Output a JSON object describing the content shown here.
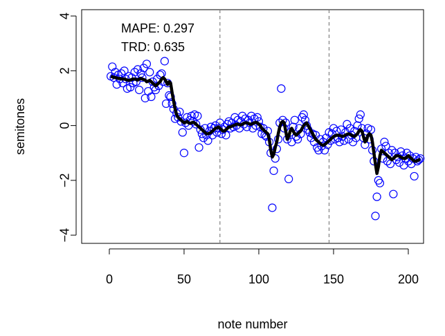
{
  "chart_data": {
    "type": "scatter",
    "xlabel": "note number",
    "ylabel": "semitones",
    "annotations": [
      "MAPE: 0.297",
      "TRD: 0.635"
    ],
    "xlim": [
      -18.5,
      210.2
    ],
    "ylim": [
      -4.3,
      4.23
    ],
    "xticks": [
      0,
      50,
      100,
      150,
      200
    ],
    "yticks": [
      {
        "value": -4,
        "label": "−4"
      },
      {
        "value": -2,
        "label": "−2"
      },
      0,
      2,
      4
    ],
    "vlines": [
      74,
      147
    ],
    "vline_color": "#808080",
    "x": [
      1,
      2,
      3,
      4,
      5,
      6,
      7,
      8,
      9,
      10,
      11,
      12,
      13,
      14,
      15,
      16,
      17,
      18,
      19,
      20,
      21,
      22,
      23,
      24,
      25,
      26,
      27,
      28,
      29,
      30,
      31,
      32,
      33,
      34,
      35,
      36,
      37,
      38,
      39,
      40,
      41,
      42,
      43,
      44,
      45,
      46,
      47,
      48,
      49,
      50,
      51,
      52,
      53,
      54,
      55,
      56,
      57,
      58,
      59,
      60,
      61,
      62,
      63,
      64,
      65,
      66,
      67,
      68,
      69,
      70,
      71,
      72,
      73,
      74,
      75,
      76,
      77,
      78,
      79,
      80,
      81,
      82,
      83,
      84,
      85,
      86,
      87,
      88,
      89,
      90,
      91,
      92,
      93,
      94,
      95,
      96,
      97,
      98,
      99,
      100,
      101,
      102,
      103,
      104,
      105,
      106,
      107,
      108,
      109,
      110,
      111,
      112,
      113,
      114,
      115,
      116,
      117,
      118,
      119,
      120,
      121,
      122,
      123,
      124,
      125,
      126,
      127,
      128,
      129,
      130,
      131,
      132,
      133,
      134,
      135,
      136,
      137,
      138,
      139,
      140,
      141,
      142,
      143,
      144,
      145,
      146,
      147,
      148,
      149,
      150,
      151,
      152,
      153,
      154,
      155,
      156,
      157,
      158,
      159,
      160,
      161,
      162,
      163,
      164,
      165,
      166,
      167,
      168,
      169,
      170,
      171,
      172,
      173,
      174,
      175,
      176,
      177,
      178,
      179,
      180,
      181,
      182,
      183,
      184,
      185,
      186,
      187,
      188,
      189,
      190,
      191,
      192,
      193,
      194,
      195,
      196,
      197,
      198,
      199,
      200,
      201,
      202,
      203,
      204,
      205,
      206,
      207,
      208
    ],
    "points": {
      "color": "#0000ff",
      "values": [
        1.8,
        2.15,
        1.75,
        1.95,
        1.5,
        1.85,
        1.7,
        1.9,
        1.55,
        2.0,
        1.7,
        1.35,
        1.8,
        1.4,
        1.75,
        1.55,
        1.95,
        1.6,
        2.05,
        1.3,
        1.9,
        1.75,
        2.1,
        1.0,
        2.25,
        1.25,
        1.95,
        1.05,
        1.6,
        1.4,
        1.3,
        1.7,
        1.45,
        1.85,
        1.9,
        1.6,
        2.35,
        0.8,
        1.55,
        1.1,
        1.05,
        0.8,
        0.6,
        0.25,
        0.45,
        0.3,
        0.5,
        0.15,
        -0.25,
        -1.0,
        0.1,
        0.3,
        0.0,
        0.2,
        0.35,
        0.15,
        0.4,
        0.05,
        0.35,
        -0.8,
        -0.15,
        -0.3,
        -0.45,
        -0.1,
        -0.35,
        -0.55,
        -0.2,
        -0.05,
        -0.35,
        -0.1,
        0.0,
        -0.25,
        -0.1,
        0.1,
        -0.3,
        -0.15,
        -0.05,
        -0.35,
        0.05,
        0.15,
        -0.1,
        0.1,
        -0.05,
        0.3,
        0.0,
        0.2,
        -0.1,
        0.15,
        0.35,
        0.05,
        0.25,
        -0.05,
        0.2,
        0.1,
        0.35,
        -0.1,
        0.25,
        0.0,
        0.3,
        0.15,
        -0.05,
        -0.3,
        -0.1,
        -0.35,
        -0.4,
        -0.2,
        -0.6,
        -1.0,
        -3.0,
        -1.65,
        -1.2,
        -0.85,
        -0.5,
        0.1,
        1.35,
        0.2,
        -0.1,
        0.1,
        -0.5,
        -1.95,
        -0.25,
        -0.6,
        -0.05,
        0.2,
        -0.4,
        -0.5,
        -0.1,
        -0.3,
        0.3,
        0.4,
        0.2,
        0.0,
        -0.15,
        -0.25,
        -0.45,
        -0.3,
        -0.6,
        -0.35,
        -0.8,
        -0.9,
        -0.5,
        -0.75,
        -0.6,
        -0.9,
        -0.45,
        -0.7,
        -0.25,
        -0.55,
        -0.3,
        -0.1,
        -0.5,
        -0.2,
        -0.45,
        -0.6,
        -0.15,
        -0.4,
        -0.55,
        -0.25,
        0.05,
        -0.5,
        -0.1,
        -0.35,
        -0.6,
        -0.2,
        -0.45,
        0.0,
        0.25,
        0.4,
        -0.1,
        -0.45,
        -0.7,
        -0.3,
        -0.1,
        -0.5,
        -0.15,
        -0.9,
        -1.3,
        -3.3,
        -2.6,
        -2.0,
        -2.1,
        -0.85,
        -1.2,
        -0.6,
        -0.75,
        -1.3,
        -1.0,
        -1.4,
        -0.9,
        -2.5,
        -1.0,
        -1.25,
        -1.15,
        -1.35,
        -0.95,
        -1.1,
        -1.45,
        -1.2,
        -1.0,
        -1.3,
        -1.1,
        -1.4,
        -1.2,
        -1.85,
        -1.15,
        -1.3,
        -1.25,
        -1.2
      ]
    },
    "line": {
      "color": "#000000",
      "values": [
        1.8,
        1.78,
        1.76,
        1.75,
        1.74,
        1.72,
        1.72,
        1.7,
        1.7,
        1.7,
        1.68,
        1.66,
        1.65,
        1.66,
        1.68,
        1.7,
        1.7,
        1.68,
        1.66,
        1.7,
        1.72,
        1.7,
        1.68,
        1.66,
        1.6,
        1.62,
        1.65,
        1.6,
        1.55,
        1.5,
        1.45,
        1.5,
        1.55,
        1.6,
        1.7,
        1.75,
        1.7,
        1.6,
        1.5,
        1.6,
        1.55,
        1.2,
        0.9,
        0.6,
        0.4,
        0.3,
        0.25,
        0.2,
        0.15,
        0.1,
        0.12,
        0.15,
        0.1,
        0.08,
        0.1,
        0.12,
        0.1,
        0.05,
        0,
        -0.05,
        -0.1,
        -0.15,
        -0.2,
        -0.25,
        -0.3,
        -0.3,
        -0.28,
        -0.25,
        -0.2,
        -0.15,
        -0.1,
        -0.08,
        -0.05,
        -0.1,
        -0.15,
        -0.2,
        -0.2,
        -0.15,
        -0.1,
        -0.05,
        -0.05,
        -0.02,
        0,
        0.02,
        0.05,
        0.05,
        0.03,
        0.02,
        0.05,
        0.08,
        0.1,
        0.1,
        0.08,
        0.05,
        0.05,
        0.08,
        0.1,
        0.12,
        0.1,
        0.05,
        0,
        -0.1,
        -0.15,
        -0.2,
        -0.25,
        -0.3,
        -0.5,
        -0.9,
        -1.15,
        -1.05,
        -0.8,
        -0.6,
        -0.3,
        -0.05,
        0.1,
        0.15,
        0.1,
        -0.2,
        -0.5,
        -0.4,
        -0.2,
        -0.1,
        -0.2,
        -0.3,
        -0.35,
        -0.3,
        -0.25,
        -0.2,
        -0.1,
        0,
        0.05,
        0.1,
        0,
        -0.1,
        -0.2,
        -0.3,
        -0.4,
        -0.5,
        -0.55,
        -0.6,
        -0.65,
        -0.7,
        -0.72,
        -0.7,
        -0.65,
        -0.6,
        -0.55,
        -0.5,
        -0.45,
        -0.4,
        -0.38,
        -0.35,
        -0.35,
        -0.36,
        -0.38,
        -0.4,
        -0.38,
        -0.35,
        -0.32,
        -0.3,
        -0.32,
        -0.35,
        -0.38,
        -0.4,
        -0.35,
        -0.3,
        -0.2,
        -0.15,
        -0.2,
        -0.4,
        -0.6,
        -0.55,
        -0.35,
        -0.3,
        -0.35,
        -0.6,
        -1.0,
        -1.4,
        -1.75,
        -1.5,
        -1.1,
        -0.9,
        -0.95,
        -1.0,
        -1.05,
        -1.1,
        -1.15,
        -1.2,
        -1.25,
        -1.2,
        -1.15,
        -1.1,
        -1.1,
        -1.12,
        -1.15,
        -1.18,
        -1.2,
        -1.2,
        -1.15,
        -1.1,
        -1.15,
        -1.2,
        -1.25,
        -1.3,
        -1.3,
        -1.28,
        -1.25,
        -1.25
      ]
    }
  }
}
